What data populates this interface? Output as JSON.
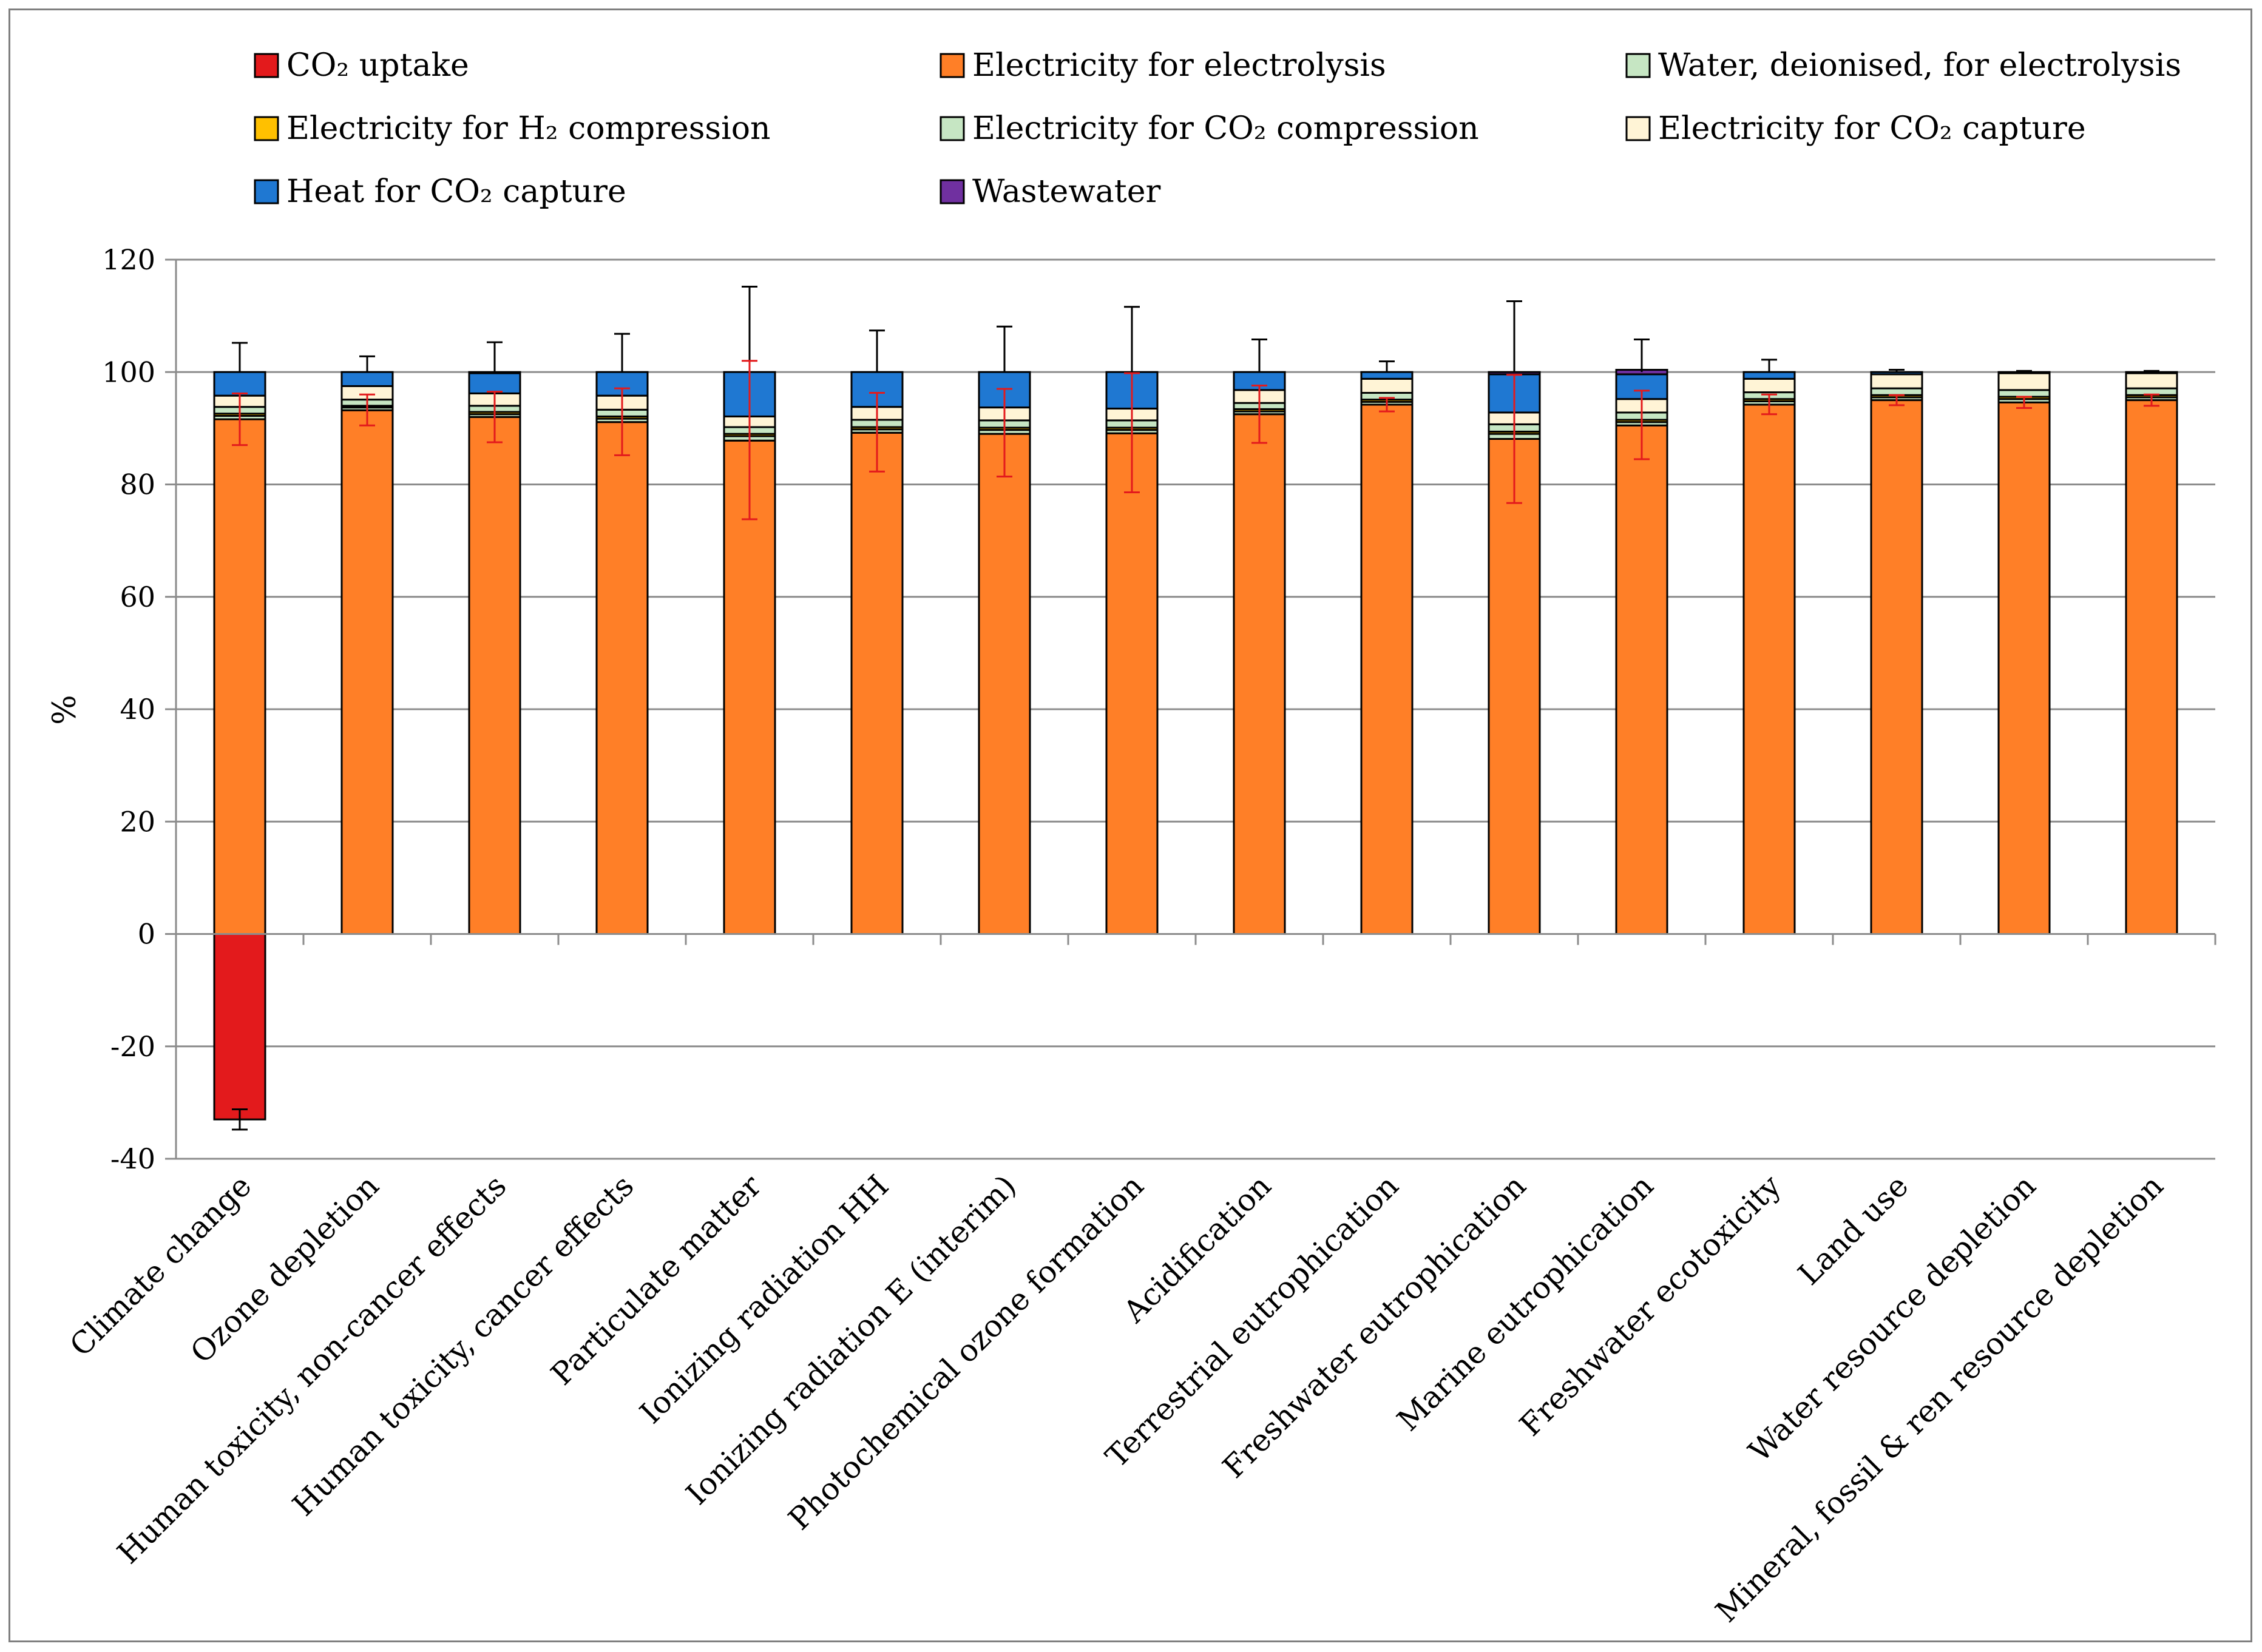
{
  "chart_data": {
    "type": "bar",
    "stacked": true,
    "title": "",
    "xlabel": "",
    "ylabel": "%",
    "ylim": [
      -40,
      120
    ],
    "yticks": [
      -40,
      -20,
      0,
      20,
      40,
      60,
      80,
      100,
      120
    ],
    "grid": true,
    "legend_position": "top",
    "categories": [
      "Climate change",
      "Ozone depletion",
      "Human toxicity, non-cancer effects",
      "Human toxicity, cancer effects",
      "Particulate matter",
      "Ionizing radiation HH",
      "Ionizing radiation E (interim)",
      "Photochemical ozone formation",
      "Acidification",
      "Terrestrial eutrophication",
      "Freshwater eutrophication",
      "Marine eutrophication",
      "Freshwater ecotoxicity",
      "Land use",
      "Water resource depletion",
      "Mineral, fossil & ren resource depletion"
    ],
    "series": [
      {
        "name": "CO₂ uptake",
        "color": "#e31a1c",
        "values": [
          -33,
          0,
          0,
          0,
          0,
          0,
          0,
          0,
          0,
          0,
          0,
          0,
          0,
          0,
          0,
          0
        ]
      },
      {
        "name": "Electricity for electrolysis",
        "color": "#ff7f27",
        "values": [
          91.6,
          93.2,
          92.0,
          91.1,
          87.8,
          89.2,
          89.0,
          89.1,
          92.5,
          94.2,
          88.1,
          90.5,
          94.2,
          95.0,
          94.6,
          95.0
        ]
      },
      {
        "name": "Water, deionised, for electrolysis",
        "color": "#c6e6c3",
        "values": [
          0.6,
          0.5,
          0.5,
          0.6,
          0.8,
          0.6,
          0.7,
          0.6,
          0.5,
          0.5,
          0.9,
          0.6,
          0.6,
          0.5,
          0.6,
          0.5
        ]
      },
      {
        "name": "Electricity for H₂ compression",
        "color": "#ffc000",
        "values": [
          0.4,
          0.3,
          0.4,
          0.4,
          0.4,
          0.4,
          0.4,
          0.4,
          0.4,
          0.4,
          0.4,
          0.4,
          0.4,
          0.4,
          0.4,
          0.4
        ]
      },
      {
        "name": "Electricity for CO₂ compression",
        "color": "#c6e6c3",
        "values": [
          1.2,
          1.1,
          1.1,
          1.2,
          1.2,
          1.3,
          1.3,
          1.3,
          1.1,
          1.2,
          1.3,
          1.3,
          1.2,
          1.2,
          1.2,
          1.2
        ]
      },
      {
        "name": "Electricity for CO₂ capture",
        "color": "#fff4d6",
        "values": [
          2.0,
          2.4,
          2.2,
          2.5,
          1.9,
          2.3,
          2.3,
          2.1,
          2.3,
          2.5,
          2.1,
          2.4,
          2.4,
          2.5,
          3.0,
          2.7
        ]
      },
      {
        "name": "Heat for CO₂ capture",
        "color": "#1f78d2",
        "values": [
          4.2,
          2.5,
          3.6,
          4.2,
          7.9,
          6.2,
          6.3,
          6.5,
          3.2,
          1.2,
          6.8,
          4.4,
          1.2,
          0.4,
          0.2,
          0.2
        ]
      },
      {
        "name": "Wastewater",
        "color": "#7030a0",
        "values": [
          0,
          0,
          0.2,
          0,
          0,
          0,
          0,
          0,
          0,
          0,
          0.4,
          0.8,
          0,
          0,
          0,
          0
        ]
      }
    ],
    "error_bars": {
      "total": {
        "color": "#000000",
        "center": [
          100,
          100,
          100,
          100,
          100,
          100,
          100,
          100,
          100,
          100,
          100,
          100,
          100,
          100,
          100,
          100
        ],
        "high": [
          105.2,
          102.8,
          105.3,
          106.8,
          115.2,
          107.4,
          108.1,
          111.6,
          105.8,
          101.9,
          112.6,
          105.8,
          102.2,
          100.4,
          100.2,
          100.2
        ]
      },
      "electrolysis": {
        "color": "#e31a1c",
        "low": [
          87.0,
          90.5,
          87.5,
          85.2,
          73.8,
          82.3,
          81.4,
          78.6,
          87.4,
          93.0,
          76.7,
          84.5,
          92.5,
          94.1,
          93.6,
          94.0
        ],
        "high": [
          96.2,
          96.0,
          96.5,
          97.1,
          102.0,
          96.3,
          97.0,
          99.8,
          97.6,
          95.4,
          99.5,
          96.7,
          96.0,
          95.9,
          95.6,
          96.0
        ]
      },
      "co2_uptake": {
        "color": "#000000",
        "index": 0,
        "low": -34.8,
        "high": -31.2
      }
    }
  },
  "legend": {
    "items": [
      {
        "label": "CO₂ uptake",
        "color": "#e31a1c"
      },
      {
        "label": "Electricity for electrolysis",
        "color": "#ff7f27"
      },
      {
        "label": "Water, deionised, for electrolysis",
        "color": "#c6e6c3"
      },
      {
        "label": "Electricity for H₂ compression",
        "color": "#ffc000"
      },
      {
        "label": "Electricity for CO₂ compression",
        "color": "#c6e6c3"
      },
      {
        "label": "Electricity for CO₂ capture",
        "color": "#fff4d6"
      },
      {
        "label": "Heat for CO₂ capture",
        "color": "#1f78d2"
      },
      {
        "label": "Wastewater",
        "color": "#7030a0"
      }
    ]
  }
}
